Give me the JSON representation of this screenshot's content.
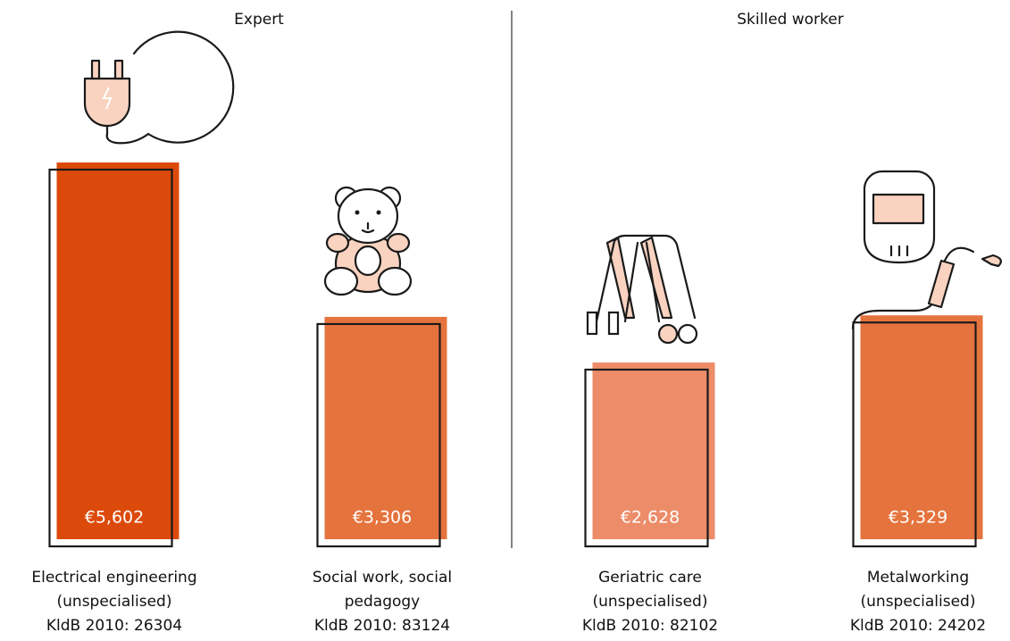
{
  "chart_data": {
    "type": "bar",
    "groups": [
      "Expert",
      "Skilled worker"
    ],
    "categories": [
      "Electrical engineering",
      "Social work, social pedagogy",
      "Geriatric care",
      "Metalworking"
    ],
    "category_details": [
      [
        "(unspecialised)",
        "KldB 2010: 26304"
      ],
      [
        "KldB 2010: 83124"
      ],
      [
        "(unspecialised)",
        "KldB 2010: 82102"
      ],
      [
        "(unspecialised)",
        "KldB 2010: 24202"
      ]
    ],
    "values": [
      5602,
      3306,
      2628,
      3329
    ],
    "value_labels": [
      "€5,602",
      "€3,306",
      "€2,628",
      "€3,329"
    ],
    "colors": [
      "#dc4a0b",
      "#e5733d",
      "#ec8c68",
      "#e5733d"
    ]
  }
}
